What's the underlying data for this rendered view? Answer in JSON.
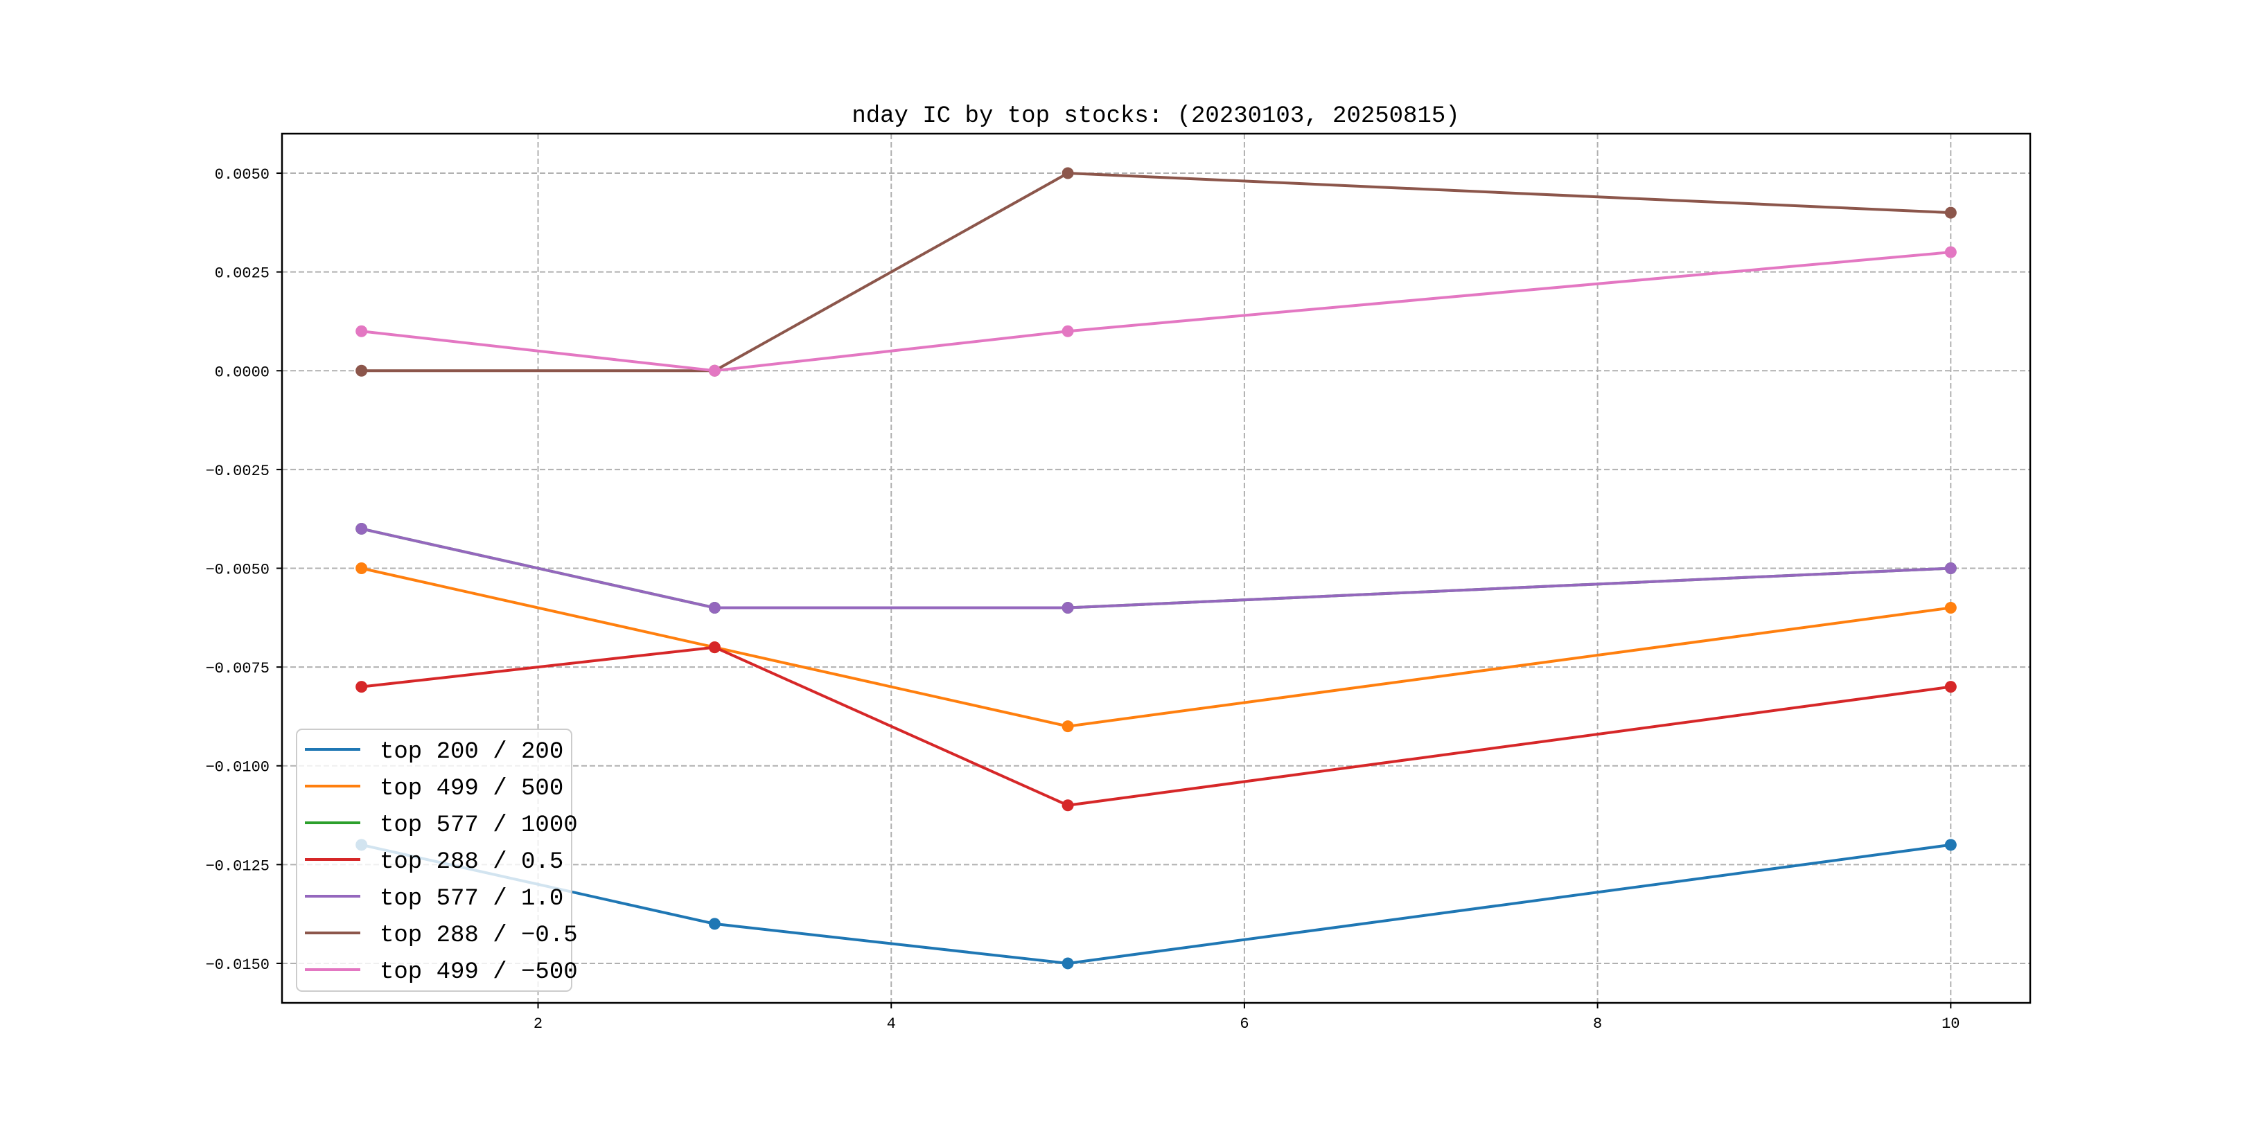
{
  "chart_data": {
    "type": "line",
    "title": "nday IC by top stocks: (20230103, 20250815)",
    "xlabel": "",
    "ylabel": "",
    "x": [
      1,
      3,
      5,
      10
    ],
    "xlim": [
      0.55,
      10.45
    ],
    "ylim": [
      -0.016,
      0.006
    ],
    "xticks": [
      2,
      4,
      6,
      8,
      10
    ],
    "xtick_labels": [
      "2",
      "4",
      "6",
      "8",
      "10"
    ],
    "yticks": [
      0.005,
      0.0025,
      0,
      -0.0025,
      -0.005,
      -0.0075,
      -0.01,
      -0.0125,
      -0.015
    ],
    "ytick_labels": [
      "0.0050",
      "0.0025",
      "0.0000",
      "−0.0025",
      "−0.0050",
      "−0.0075",
      "−0.0100",
      "−0.0125",
      "−0.0150"
    ],
    "grid": true,
    "legend_position": "lower-left",
    "series": [
      {
        "name": "top 200 / 200",
        "color": "#1f77b4",
        "values": [
          -0.012,
          -0.014,
          -0.015,
          -0.012
        ]
      },
      {
        "name": "top 499 / 500",
        "color": "#ff7f0e",
        "values": [
          -0.005,
          -0.007,
          -0.009,
          -0.006
        ]
      },
      {
        "name": "top 577 / 1000",
        "color": "#2ca02c",
        "values": [
          -0.004,
          -0.006,
          -0.006,
          -0.005
        ]
      },
      {
        "name": "top 288 / 0.5",
        "color": "#d62728",
        "values": [
          -0.008,
          -0.007,
          -0.011,
          -0.008
        ]
      },
      {
        "name": "top 577 / 1.0",
        "color": "#9467bd",
        "values": [
          -0.004,
          -0.006,
          -0.006,
          -0.005
        ]
      },
      {
        "name": "top 288 / −0.5",
        "color": "#8c564b",
        "values": [
          0,
          0,
          0.005,
          0.004
        ]
      },
      {
        "name": "top 499 / −500",
        "color": "#e377c2",
        "values": [
          0.001,
          0,
          0.001,
          0.003
        ]
      }
    ]
  }
}
